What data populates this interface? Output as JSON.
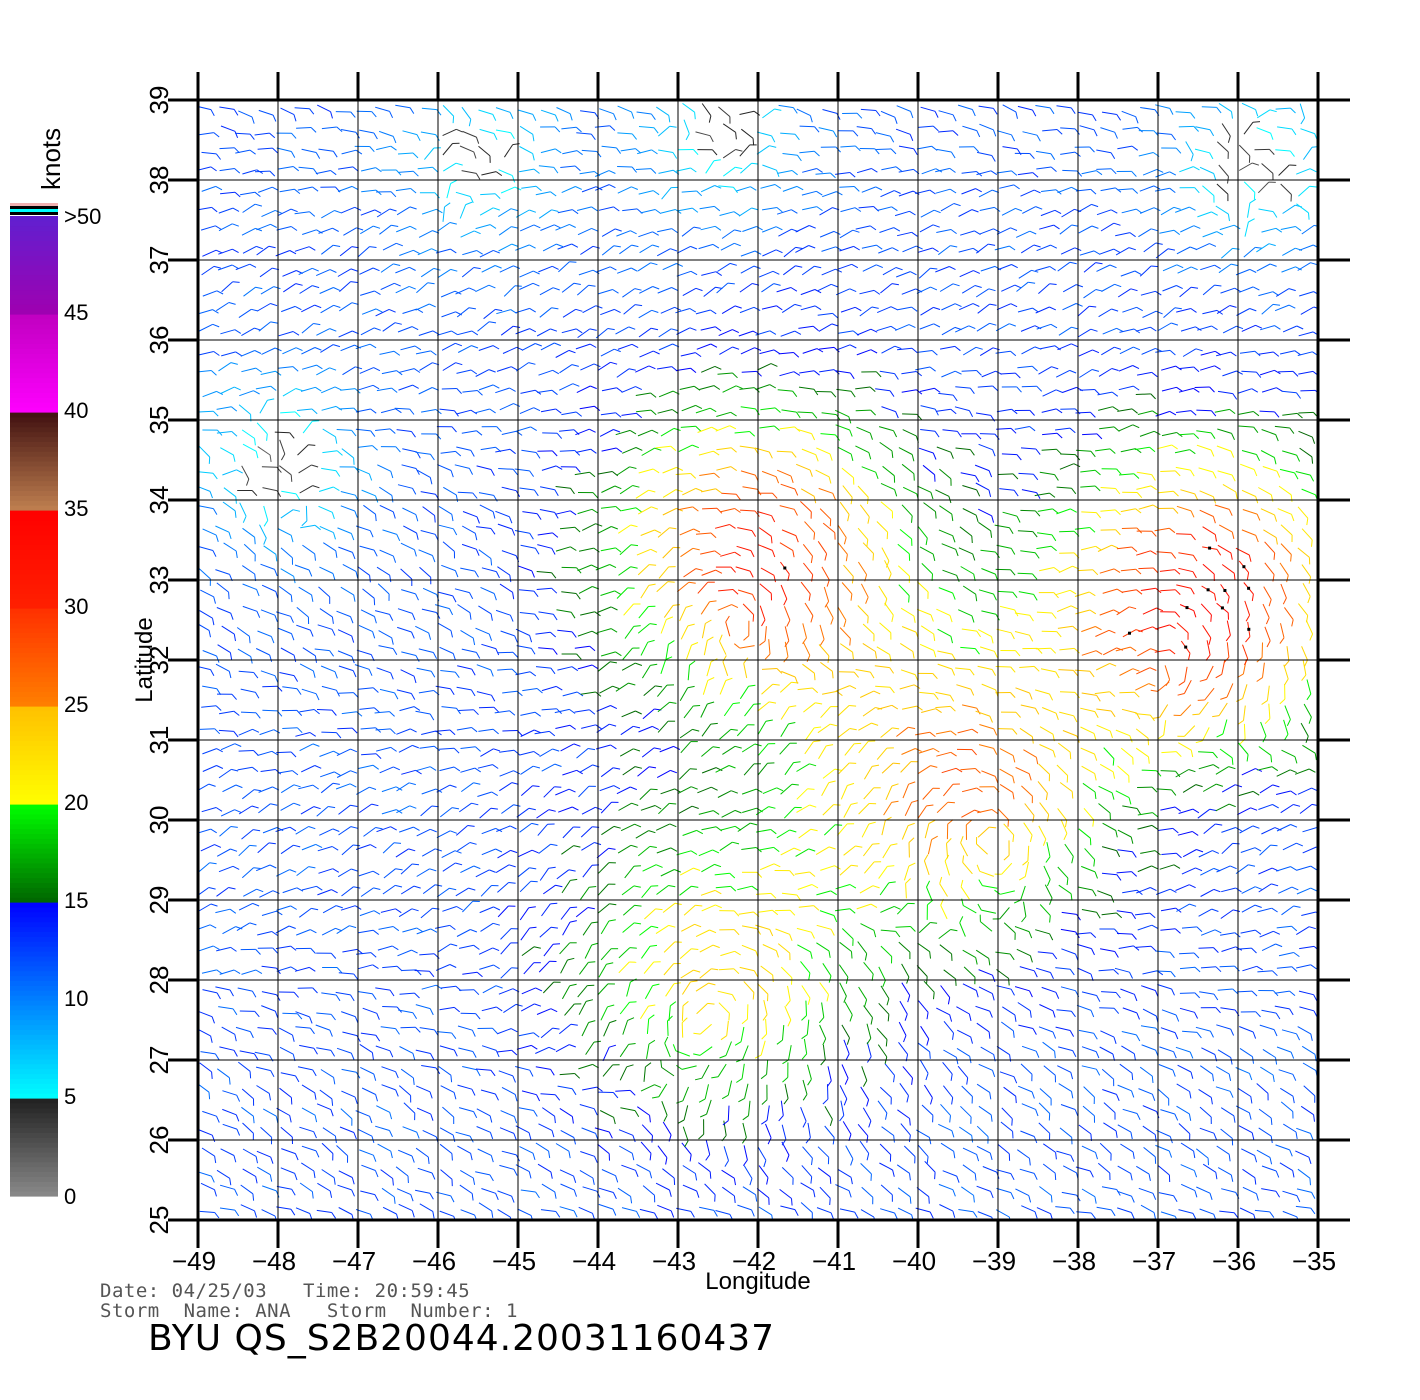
{
  "chart_data": {
    "type": "wind_vector_map",
    "xlabel": "Longitude",
    "ylabel": "Latitude",
    "xlim": [
      -49,
      -35
    ],
    "ylim": [
      25,
      39
    ],
    "x_ticks": [
      "−49",
      "−48",
      "−47",
      "−46",
      "−45",
      "−44",
      "−43",
      "−42",
      "−41",
      "−40",
      "−39",
      "−38",
      "−37",
      "−36",
      "−35"
    ],
    "y_ticks": [
      "25",
      "26",
      "27",
      "28",
      "29",
      "30",
      "31",
      "32",
      "33",
      "34",
      "35",
      "36",
      "37",
      "38",
      "39"
    ],
    "grid": true,
    "colorbar": {
      "unit": "knots",
      "labels": [
        "0",
        "5",
        "10",
        "15",
        "20",
        "25",
        "30",
        "35",
        "40",
        "45",
        ">50"
      ],
      "bands": [
        {
          "from": 0,
          "to": 5,
          "colors": [
            "#8a8a8a",
            "#202020"
          ]
        },
        {
          "from": 5,
          "to": 10,
          "colors": [
            "#00ffff",
            "#0080ff"
          ]
        },
        {
          "from": 10,
          "to": 15,
          "colors": [
            "#0080ff",
            "#0000ff"
          ]
        },
        {
          "from": 15,
          "to": 20,
          "colors": [
            "#006400",
            "#00ff00"
          ]
        },
        {
          "from": 20,
          "to": 25,
          "colors": [
            "#ffff00",
            "#ffc000"
          ]
        },
        {
          "from": 25,
          "to": 30,
          "colors": [
            "#ff8000",
            "#ff3000"
          ]
        },
        {
          "from": 30,
          "to": 35,
          "colors": [
            "#ff2000",
            "#ff0000"
          ]
        },
        {
          "from": 35,
          "to": 40,
          "colors": [
            "#c08050",
            "#401010"
          ]
        },
        {
          "from": 40,
          "to": 45,
          "colors": [
            "#ff00ff",
            "#c000c0"
          ]
        },
        {
          "from": 45,
          "to": 50,
          "colors": [
            "#a000b0",
            "#6020d0"
          ]
        }
      ],
      "overflow_stripes": [
        "#ffffff",
        "#f0b0b0",
        "#000000",
        "#00ffff",
        "#000000"
      ]
    },
    "wind_field": {
      "note": "dense field of wind barbs; speed in knots, direction toward",
      "centers": [
        {
          "lon": -42.0,
          "lat": 33.3,
          "speed": 31
        },
        {
          "lon": -36.5,
          "lat": 32.8,
          "speed": 33
        },
        {
          "lon": -39.5,
          "lat": 30.5,
          "speed": 27
        },
        {
          "lon": -42.5,
          "lat": 28.2,
          "speed": 23
        }
      ],
      "calm_zones": [
        {
          "lon": -48.0,
          "lat": 34.5,
          "speed": 3
        },
        {
          "lon": -45.5,
          "lat": 38.3,
          "speed": 4
        },
        {
          "lon": -42.5,
          "lat": 38.6,
          "speed": 4
        },
        {
          "lon": -35.8,
          "lat": 38.2,
          "speed": 3
        }
      ],
      "background_speed": 12
    }
  },
  "footer": {
    "date_label": "Date:",
    "date": "04/25/03",
    "time_label": "Time:",
    "time": "20:59:45",
    "storm_name_label": "Storm  Name:",
    "storm_name": "ANA",
    "storm_number_label": "Storm  Number:",
    "storm_number": "1",
    "product_id": "BYU  QS_S2B20044.20031160437"
  }
}
